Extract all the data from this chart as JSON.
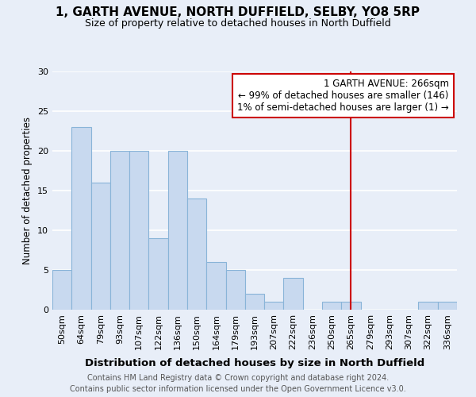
{
  "title": "1, GARTH AVENUE, NORTH DUFFIELD, SELBY, YO8 5RP",
  "subtitle": "Size of property relative to detached houses in North Duffield",
  "xlabel": "Distribution of detached houses by size in North Duffield",
  "ylabel": "Number of detached properties",
  "categories": [
    "50sqm",
    "64sqm",
    "79sqm",
    "93sqm",
    "107sqm",
    "122sqm",
    "136sqm",
    "150sqm",
    "164sqm",
    "179sqm",
    "193sqm",
    "207sqm",
    "222sqm",
    "236sqm",
    "250sqm",
    "265sqm",
    "279sqm",
    "293sqm",
    "307sqm",
    "322sqm",
    "336sqm"
  ],
  "values": [
    5,
    23,
    16,
    20,
    20,
    9,
    20,
    14,
    6,
    5,
    2,
    1,
    4,
    0,
    1,
    1,
    0,
    0,
    0,
    1,
    1
  ],
  "bar_color": "#c8d9ef",
  "bar_edge_color": "#89b4d8",
  "ylim": [
    0,
    30
  ],
  "yticks": [
    0,
    5,
    10,
    15,
    20,
    25,
    30
  ],
  "property_line_color": "#cc0000",
  "property_line_idx": 15,
  "annotation_line1": "1 GARTH AVENUE: 266sqm",
  "annotation_line2": "← 99% of detached houses are smaller (146)",
  "annotation_line3": "1% of semi-detached houses are larger (1) →",
  "background_color": "#e8eef8",
  "plot_bg_color": "#e8eef8",
  "grid_color": "#ffffff",
  "title_fontsize": 11,
  "subtitle_fontsize": 9,
  "ylabel_fontsize": 8.5,
  "xlabel_fontsize": 9.5,
  "tick_fontsize": 8,
  "annotation_fontsize": 8.5,
  "footer_fontsize": 7,
  "footer_line1": "Contains HM Land Registry data © Crown copyright and database right 2024.",
  "footer_line2": "Contains public sector information licensed under the Open Government Licence v3.0."
}
